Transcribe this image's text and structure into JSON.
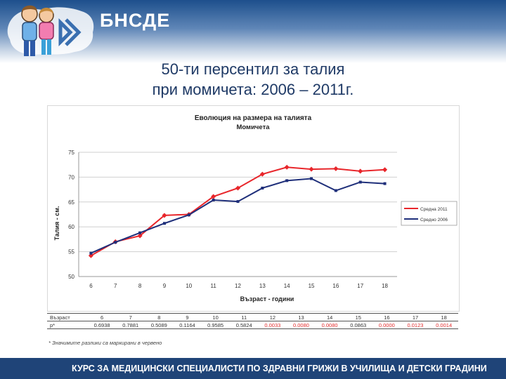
{
  "header": {
    "org_name": "БНСДЕ",
    "title_line1": "50-ти персентил за талия",
    "title_line2": "при момичета: 2006 – 2011г."
  },
  "chart_data": {
    "type": "line",
    "title": "Еволюция на размера на талията",
    "subtitle": "Момичета",
    "xlabel": "Възраст - години",
    "ylabel": "Талия - см.",
    "categories": [
      "6",
      "7",
      "8",
      "9",
      "10",
      "11",
      "12",
      "13",
      "14",
      "15",
      "16",
      "17",
      "18"
    ],
    "ylim": [
      50,
      75
    ],
    "yticks": [
      50,
      55,
      60,
      65,
      70,
      75
    ],
    "grid": true,
    "legend_position": "right",
    "series": [
      {
        "name": "Средна 2011",
        "color": "#e8262b",
        "values": [
          54.2,
          57.0,
          58.2,
          62.3,
          62.5,
          66.1,
          67.8,
          70.6,
          72.0,
          71.6,
          71.7,
          71.2,
          71.5
        ]
      },
      {
        "name": "Средно 2006",
        "color": "#1f2f7a",
        "values": [
          54.7,
          56.9,
          58.8,
          60.7,
          62.4,
          65.4,
          65.1,
          67.8,
          69.3,
          69.7,
          67.3,
          69.0,
          68.7
        ]
      }
    ]
  },
  "p_table": {
    "header_label": "Възраст",
    "ages": [
      "6",
      "7",
      "8",
      "9",
      "10",
      "11",
      "12",
      "13",
      "14",
      "15",
      "16",
      "17",
      "18"
    ],
    "row_label": "p*",
    "p_values": [
      "0.6938",
      "0.7881",
      "0.5089",
      "0.1164",
      "0.9585",
      "0.5824",
      "0.0033",
      "0.0080",
      "0.0080",
      "0.0863",
      "0.0000",
      "0.0123",
      "0.0014"
    ],
    "significant": [
      false,
      false,
      false,
      false,
      false,
      false,
      true,
      true,
      true,
      false,
      true,
      true,
      true
    ],
    "sig_color": "#e53030"
  },
  "footnote": "* Значимите разлики са маркирани в червено",
  "footer": {
    "text": "КУРС ЗА МЕДИЦИНСКИ СПЕЦИАЛИСТИ ПО ЗДРАВНИ ГРИЖИ В УЧИЛИЩА И ДЕТСКИ ГРАДИНИ"
  }
}
